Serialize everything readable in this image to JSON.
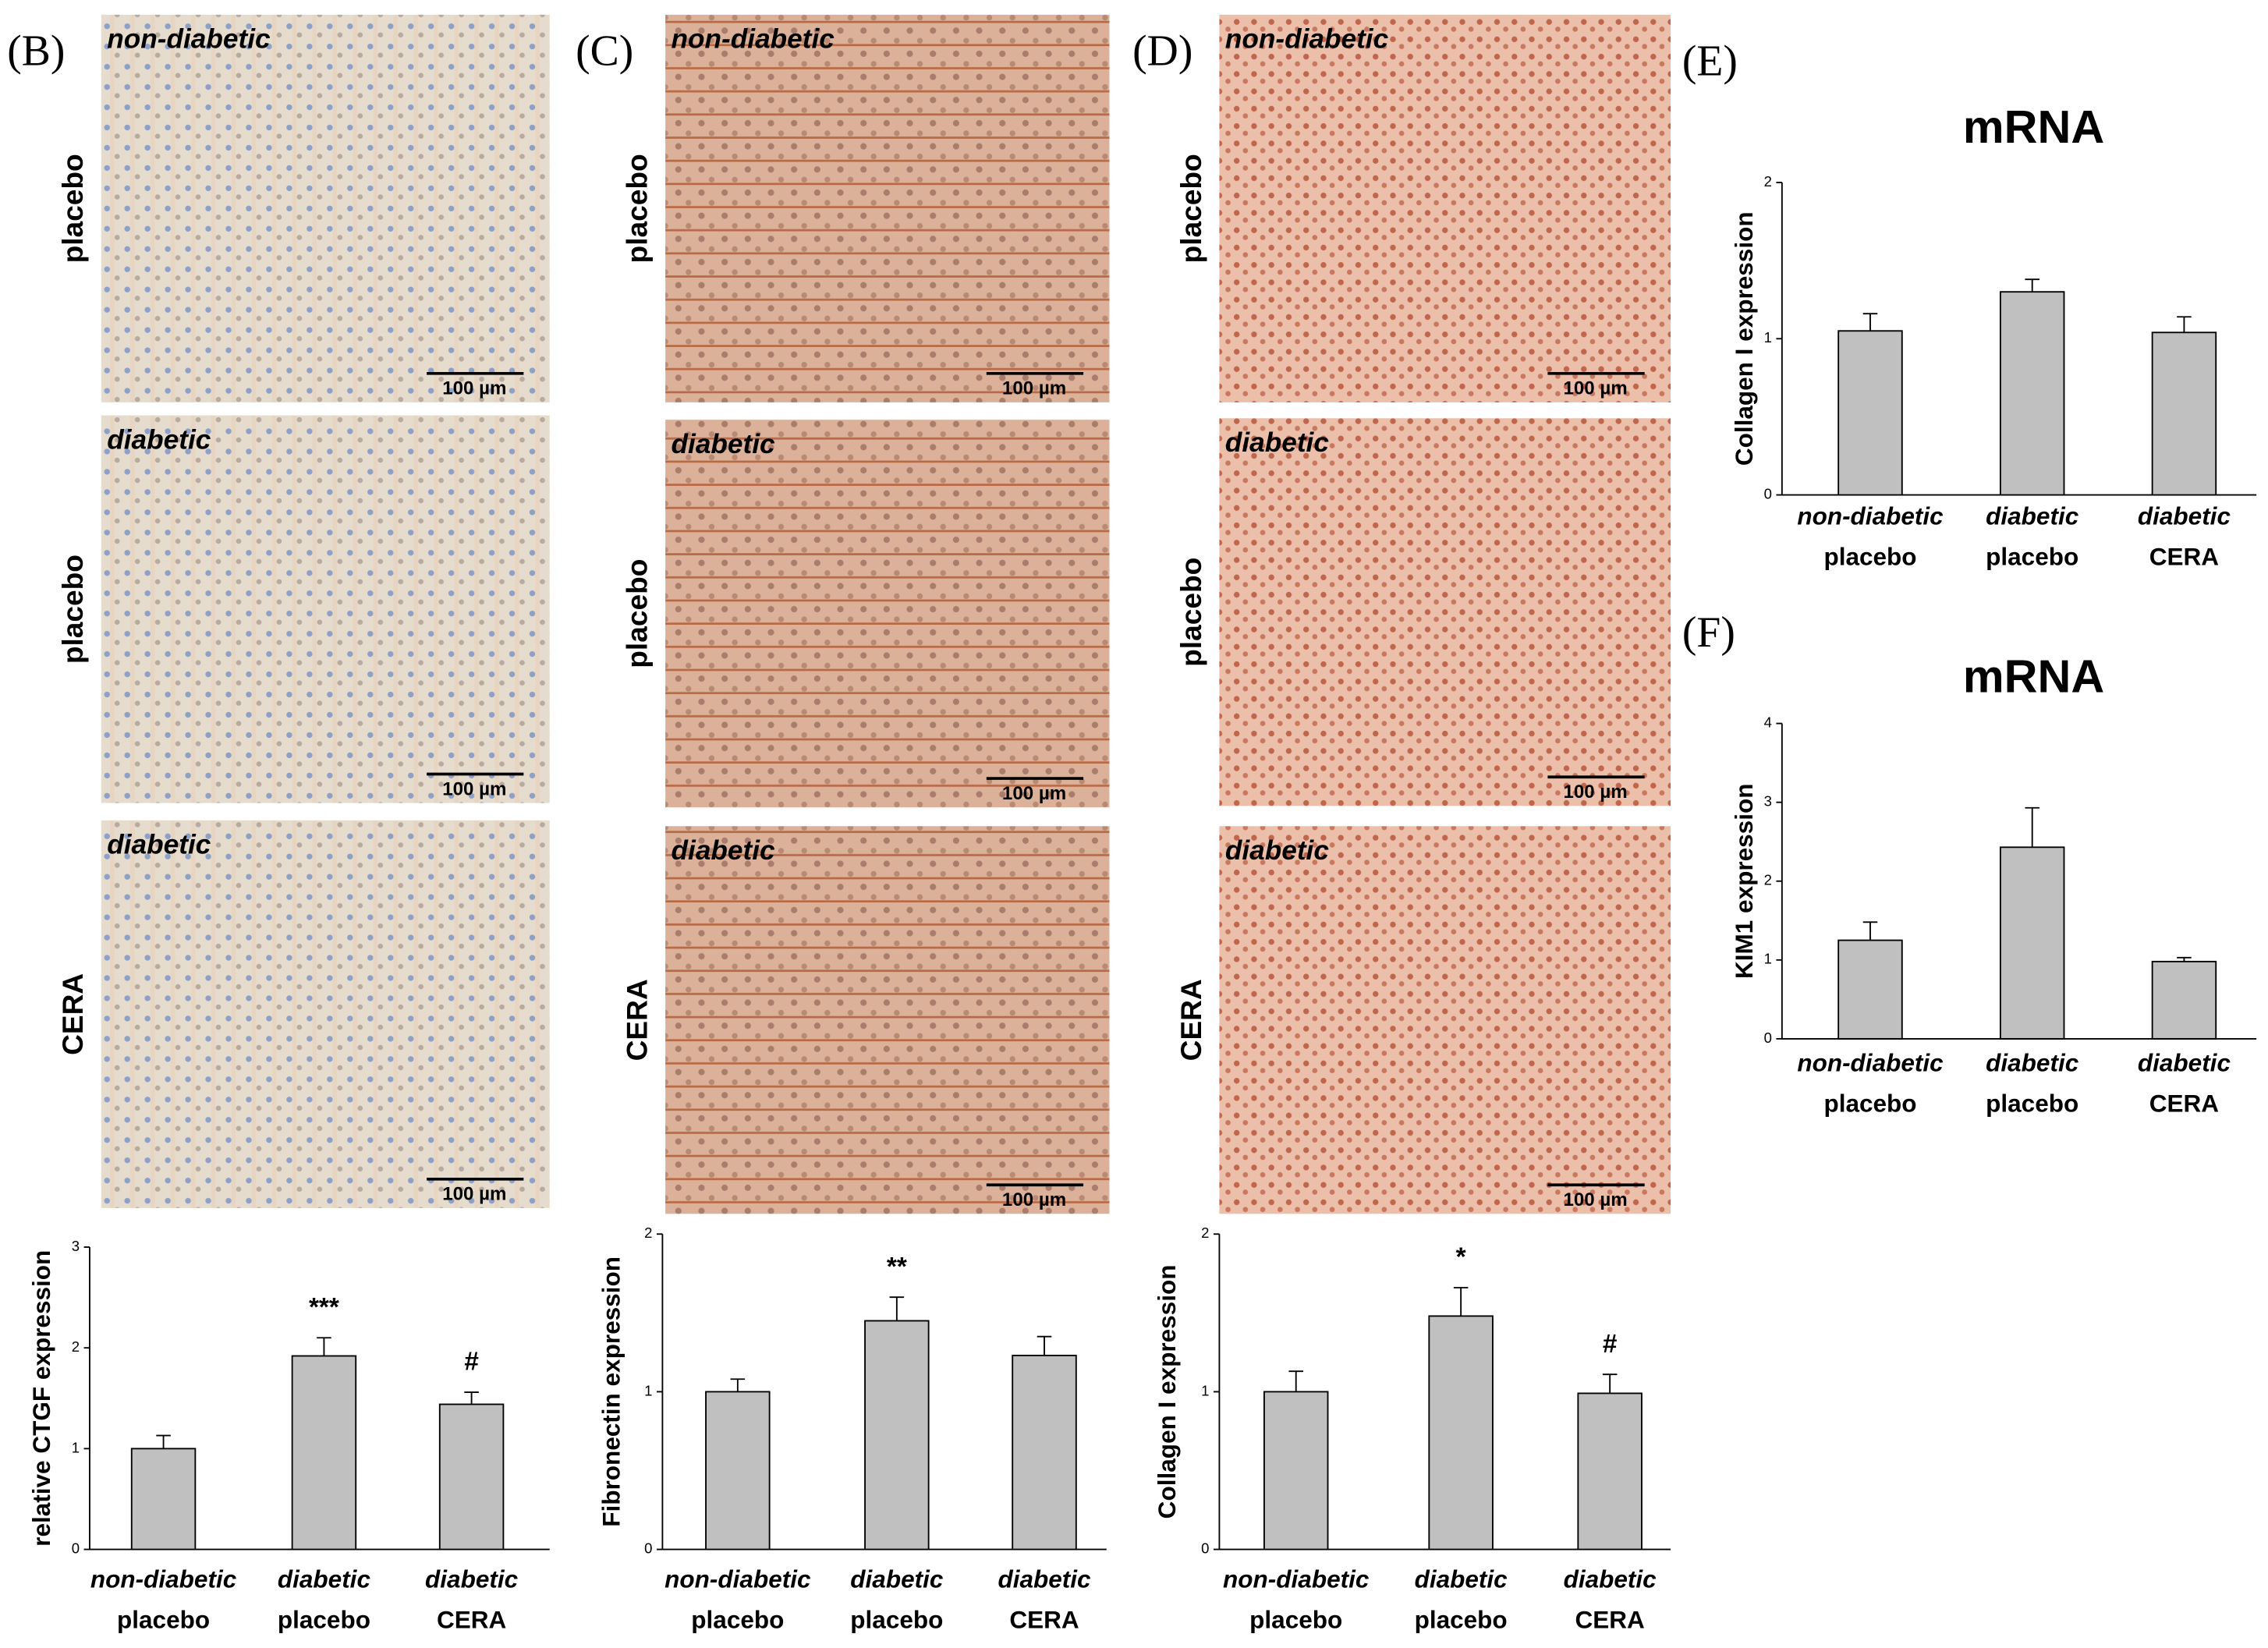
{
  "panels": [
    {
      "label": "(B)",
      "images": [
        {
          "condition": "non-diabetic",
          "treatment": "placebo",
          "scale": "100 µm"
        },
        {
          "condition": "diabetic",
          "treatment": "placebo",
          "scale": "100 µm"
        },
        {
          "condition": "diabetic",
          "treatment": "CERA",
          "scale": "100 µm"
        }
      ]
    },
    {
      "label": "(C)",
      "images": [
        {
          "condition": "non-diabetic",
          "treatment": "placebo",
          "scale": "100 µm"
        },
        {
          "condition": "diabetic",
          "treatment": "placebo",
          "scale": "100 µm"
        },
        {
          "condition": "diabetic",
          "treatment": "CERA",
          "scale": "100 µm"
        }
      ]
    },
    {
      "label": "(D)",
      "images": [
        {
          "condition": "non-diabetic",
          "treatment": "placebo",
          "scale": "100 µm"
        },
        {
          "condition": "diabetic",
          "treatment": "placebo",
          "scale": "100 µm"
        },
        {
          "condition": "diabetic",
          "treatment": "CERA",
          "scale": "100 µm"
        }
      ]
    },
    {
      "label": "(E)"
    },
    {
      "label": "(F)"
    }
  ],
  "chart_data": [
    {
      "type": "bar",
      "ylabel": "relative CTGF expression",
      "categories": [
        [
          "non-diabetic",
          "placebo"
        ],
        [
          "diabetic",
          "placebo"
        ],
        [
          "diabetic",
          "CERA"
        ]
      ],
      "values": [
        1.0,
        1.92,
        1.44
      ],
      "errors": [
        0.13,
        0.18,
        0.12
      ],
      "significance": [
        null,
        "***",
        "#"
      ],
      "color": "#c0c0c0",
      "ylim": [
        0,
        3
      ],
      "yticks": [
        0,
        1,
        2,
        3
      ]
    },
    {
      "type": "bar",
      "ylabel": "Fibronectin expression",
      "categories": [
        [
          "non-diabetic",
          "placebo"
        ],
        [
          "diabetic",
          "placebo"
        ],
        [
          "diabetic",
          "CERA"
        ]
      ],
      "values": [
        1.0,
        1.45,
        1.23
      ],
      "errors": [
        0.08,
        0.15,
        0.12
      ],
      "significance": [
        null,
        "**",
        null
      ],
      "color": "#c0c0c0",
      "ylim": [
        0,
        2
      ],
      "yticks": [
        0,
        1,
        2
      ]
    },
    {
      "type": "bar",
      "ylabel": "Collagen I expression",
      "categories": [
        [
          "non-diabetic",
          "placebo"
        ],
        [
          "diabetic",
          "placebo"
        ],
        [
          "diabetic",
          "CERA"
        ]
      ],
      "values": [
        1.0,
        1.48,
        0.99
      ],
      "errors": [
        0.13,
        0.18,
        0.12
      ],
      "significance": [
        null,
        "*",
        "#"
      ],
      "color": "#c0c0c0",
      "ylim": [
        0,
        2
      ],
      "yticks": [
        0,
        1,
        2
      ]
    },
    {
      "type": "bar",
      "title": "mRNA",
      "ylabel": "Collagen I expression",
      "categories": [
        [
          "non-diabetic",
          "placebo"
        ],
        [
          "diabetic",
          "placebo"
        ],
        [
          "diabetic",
          "CERA"
        ]
      ],
      "values": [
        1.05,
        1.3,
        1.04
      ],
      "errors": [
        0.11,
        0.08,
        0.1
      ],
      "color": "#c0c0c0",
      "ylim": [
        0,
        2
      ],
      "yticks": [
        0,
        1,
        2
      ]
    },
    {
      "type": "bar",
      "title": "mRNA",
      "ylabel": "KIM1 expression",
      "categories": [
        [
          "non-diabetic",
          "placebo"
        ],
        [
          "diabetic",
          "placebo"
        ],
        [
          "diabetic",
          "CERA"
        ]
      ],
      "values": [
        1.25,
        2.43,
        0.98
      ],
      "errors": [
        0.23,
        0.5,
        0.05
      ],
      "color": "#c0c0c0",
      "ylim": [
        0,
        4
      ],
      "yticks": [
        0,
        1,
        2,
        3,
        4
      ]
    }
  ]
}
